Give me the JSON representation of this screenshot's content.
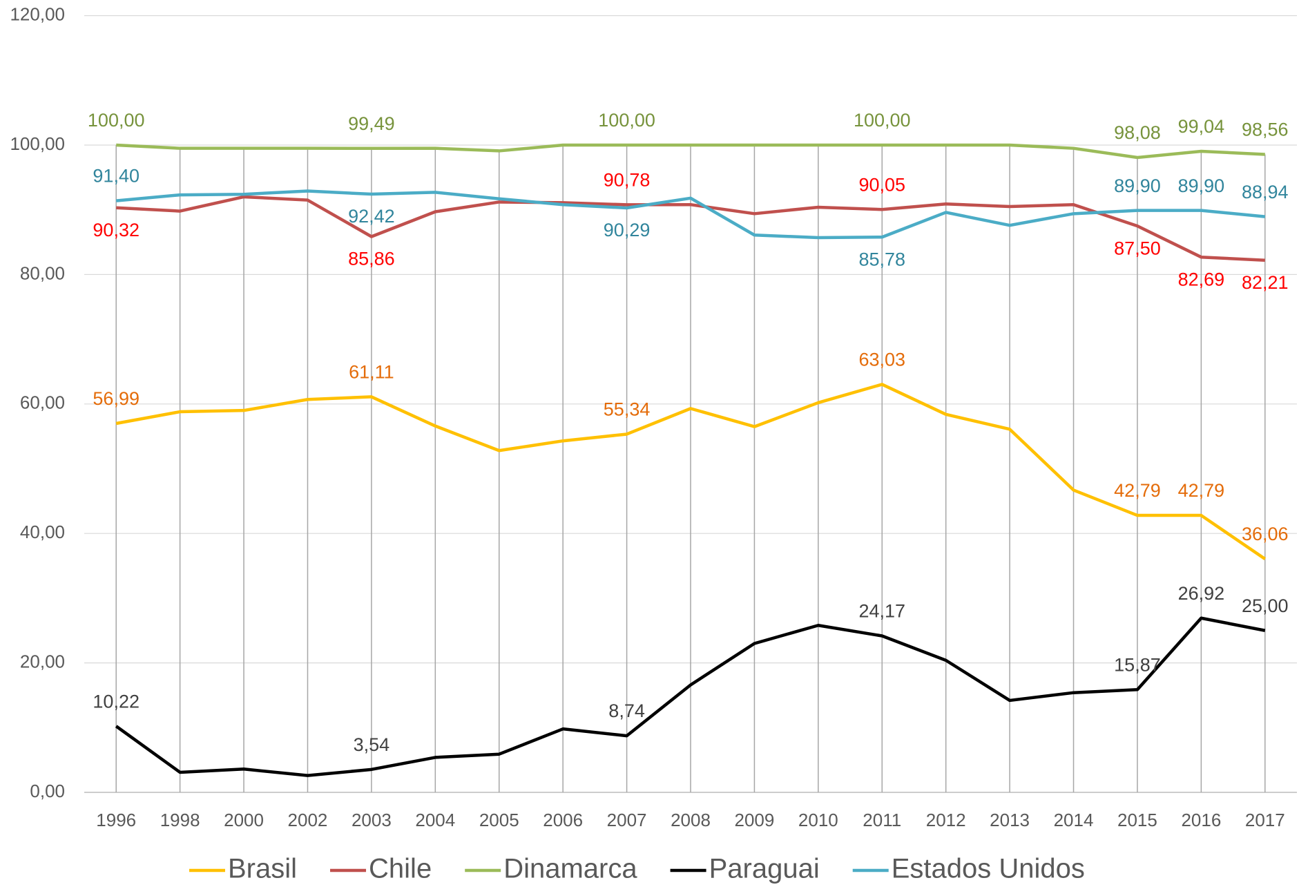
{
  "chart_data": {
    "type": "line",
    "categories": [
      "1996",
      "1998",
      "2000",
      "2002",
      "2003",
      "2004",
      "2005",
      "2006",
      "2007",
      "2008",
      "2009",
      "2010",
      "2011",
      "2012",
      "2013",
      "2014",
      "2015",
      "2016",
      "2017"
    ],
    "ylim": [
      0,
      120
    ],
    "yticks": [
      {
        "value": 0,
        "label": "0,00"
      },
      {
        "value": 20,
        "label": "20,00"
      },
      {
        "value": 40,
        "label": "40,00"
      },
      {
        "value": 60,
        "label": "60,00"
      },
      {
        "value": 80,
        "label": "80,00"
      },
      {
        "value": 100,
        "label": "100,00"
      },
      {
        "value": 120,
        "label": "120,00"
      }
    ],
    "grid": true,
    "drop_lines": true,
    "legend": "bottom",
    "series": [
      {
        "name": "Brasil",
        "color": "#ffc000",
        "label_color": "#e46c0a",
        "values": [
          56.99,
          58.8,
          59.0,
          60.7,
          61.11,
          56.6,
          52.8,
          54.3,
          55.34,
          59.3,
          56.5,
          60.2,
          63.03,
          58.4,
          56.1,
          46.7,
          42.79,
          42.79,
          36.06
        ],
        "value_labels": [
          "56,99",
          null,
          null,
          null,
          "61,11",
          null,
          null,
          null,
          "55,34",
          null,
          null,
          null,
          "63,03",
          null,
          null,
          null,
          "42,79",
          "42,79",
          "36,06"
        ]
      },
      {
        "name": "Chile",
        "color": "#c0504d",
        "label_color": "#ff0000",
        "values": [
          90.32,
          89.8,
          92.0,
          91.5,
          85.86,
          89.7,
          91.2,
          91.1,
          90.78,
          90.8,
          89.4,
          90.4,
          90.05,
          90.9,
          90.5,
          90.8,
          87.5,
          82.69,
          82.21
        ],
        "value_labels": [
          "90,32",
          null,
          null,
          null,
          "85,86",
          null,
          null,
          null,
          "90,78",
          null,
          null,
          null,
          "90,05",
          null,
          null,
          null,
          "87,50",
          "82,69",
          "82,21"
        ]
      },
      {
        "name": "Dinamarca",
        "color": "#9bbb59",
        "label_color": "#77933c",
        "values": [
          100,
          99.5,
          99.5,
          99.5,
          99.49,
          99.5,
          99.1,
          100,
          100,
          100,
          100,
          100,
          100,
          100,
          100,
          99.5,
          98.08,
          99.04,
          98.56
        ],
        "value_labels": [
          "100,00",
          null,
          null,
          null,
          "99,49",
          null,
          null,
          null,
          "100,00",
          null,
          null,
          null,
          "100,00",
          null,
          null,
          null,
          "98,08",
          "99,04",
          "98,56"
        ]
      },
      {
        "name": "Paraguai",
        "color": "#000000",
        "label_color": "#404040",
        "values": [
          10.22,
          3.1,
          3.6,
          2.6,
          3.54,
          5.4,
          5.9,
          9.8,
          8.74,
          16.6,
          23.0,
          25.8,
          24.17,
          20.4,
          14.2,
          15.4,
          15.87,
          26.92,
          25.0
        ],
        "value_labels": [
          "10,22",
          null,
          null,
          null,
          "3,54",
          null,
          null,
          null,
          "8,74",
          null,
          null,
          null,
          "24,17",
          null,
          null,
          null,
          "15,87",
          "26,92",
          "25,00"
        ]
      },
      {
        "name": "Estados Unidos",
        "color": "#4bacc6",
        "label_color": "#31859c",
        "values": [
          91.4,
          92.3,
          92.4,
          92.9,
          92.42,
          92.7,
          91.7,
          90.8,
          90.29,
          91.8,
          86.1,
          85.7,
          85.78,
          89.6,
          87.6,
          89.4,
          89.9,
          89.9,
          88.94
        ],
        "value_labels": [
          "91,40",
          null,
          null,
          null,
          "92,42",
          null,
          null,
          null,
          "90,29",
          null,
          null,
          null,
          "85,78",
          null,
          null,
          null,
          "89,90",
          "89,90",
          "88,94"
        ]
      }
    ]
  }
}
